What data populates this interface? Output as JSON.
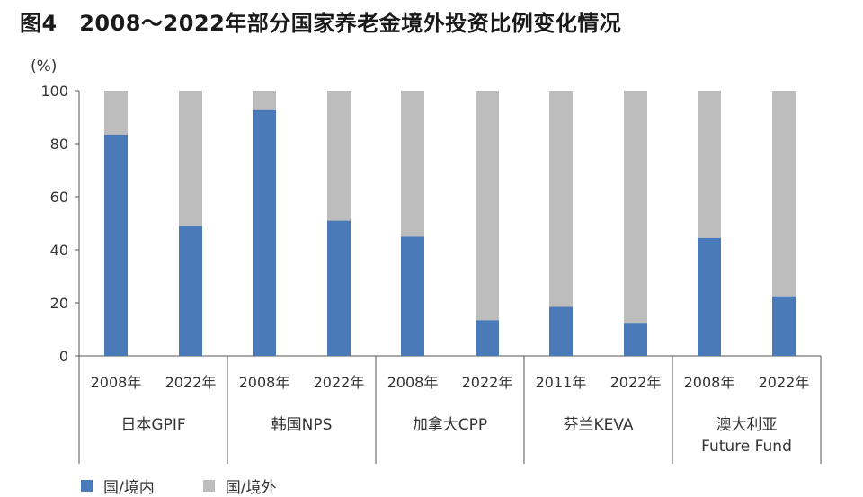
{
  "figure_title": "图4　2008～2022年部分国家养老金境外投资比例变化情况",
  "chart_data": {
    "type": "bar",
    "stacked": true,
    "ylabel": "(%)",
    "ylim": [
      0,
      100
    ],
    "yticks": [
      0,
      20,
      40,
      60,
      80,
      100
    ],
    "grid": false,
    "legend_position": "bottom-left",
    "groups": [
      {
        "label_lines": [
          "日本GPIF"
        ],
        "years": [
          "2008年",
          "2022年"
        ]
      },
      {
        "label_lines": [
          "韩国NPS"
        ],
        "years": [
          "2008年",
          "2022年"
        ]
      },
      {
        "label_lines": [
          "加拿大CPP"
        ],
        "years": [
          "2008年",
          "2022年"
        ]
      },
      {
        "label_lines": [
          "芬兰KEVA"
        ],
        "years": [
          "2011年",
          "2022年"
        ]
      },
      {
        "label_lines": [
          "澳大利亚",
          "Future Fund"
        ],
        "years": [
          "2008年",
          "2022年"
        ]
      }
    ],
    "series": [
      {
        "name": "国/境内",
        "color": "#4a7ab8",
        "values": [
          83.5,
          49,
          93,
          51,
          45,
          13.5,
          18.5,
          12.5,
          44.5,
          22.5
        ]
      },
      {
        "name": "国/境外",
        "color": "#bdbdbd",
        "values": [
          16.5,
          51,
          7,
          49,
          55,
          86.5,
          81.5,
          87.5,
          55.5,
          77.5
        ]
      }
    ]
  }
}
